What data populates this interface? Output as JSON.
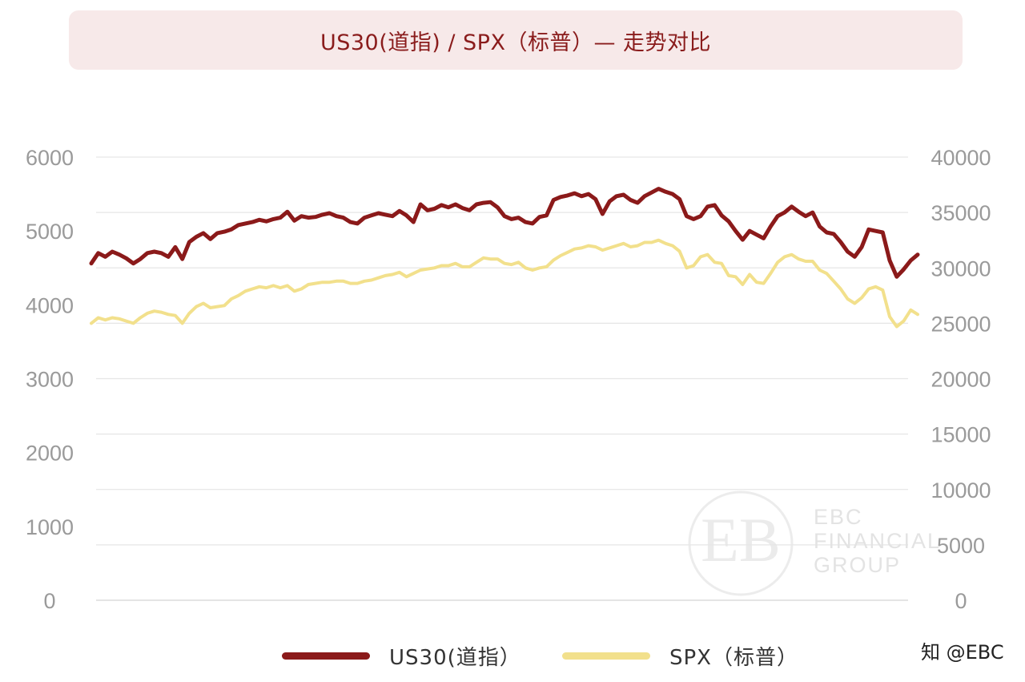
{
  "title": "US30(道指) / SPX（标普）— 走势对比",
  "watermark": "知 @EBC",
  "logo": {
    "line1": "EBC",
    "line2": "FINANCIAL",
    "line3": "GROUP"
  },
  "colors": {
    "us30": "#8b1a1a",
    "spx": "#f2e08c",
    "grid": "#e6e6e6",
    "tick": "#9a9a9a",
    "banner": "#f7e9e9"
  },
  "chart_data": {
    "type": "line",
    "grid": true,
    "legend_position": "bottom",
    "y_left": {
      "ticks": [
        "0",
        "1000",
        "2000",
        "3000",
        "4000",
        "5000",
        "6000"
      ],
      "range": [
        0,
        6000
      ]
    },
    "y_right": {
      "ticks": [
        "0",
        "5000",
        "10000",
        "15000",
        "20000",
        "25000",
        "30000",
        "35000",
        "40000"
      ],
      "range": [
        0,
        40000
      ]
    },
    "series": [
      {
        "name": "US30(道指）",
        "axis": "left",
        "color": "#8b1a1a",
        "values": [
          4560,
          4700,
          4650,
          4720,
          4680,
          4630,
          4560,
          4620,
          4700,
          4720,
          4700,
          4650,
          4780,
          4620,
          4850,
          4920,
          4970,
          4890,
          4970,
          4990,
          5020,
          5080,
          5100,
          5120,
          5150,
          5130,
          5160,
          5180,
          5260,
          5140,
          5200,
          5180,
          5190,
          5220,
          5240,
          5200,
          5180,
          5120,
          5100,
          5180,
          5210,
          5240,
          5220,
          5200,
          5270,
          5210,
          5120,
          5360,
          5280,
          5300,
          5350,
          5320,
          5360,
          5310,
          5280,
          5360,
          5380,
          5390,
          5320,
          5200,
          5160,
          5180,
          5120,
          5100,
          5190,
          5210,
          5420,
          5460,
          5480,
          5510,
          5470,
          5500,
          5430,
          5230,
          5400,
          5470,
          5490,
          5420,
          5380,
          5470,
          5520,
          5570,
          5530,
          5500,
          5430,
          5200,
          5160,
          5200,
          5330,
          5350,
          5210,
          5130,
          5000,
          4880,
          5000,
          4950,
          4900,
          5060,
          5200,
          5250,
          5330,
          5260,
          5200,
          5250,
          5060,
          4980,
          4960,
          4850,
          4720,
          4650,
          4780,
          5020,
          5000,
          4980,
          4600,
          4380,
          4480,
          4600,
          4680
        ]
      },
      {
        "name": "SPX（标普）",
        "axis": "right",
        "color": "#f2e08c",
        "values": [
          25000,
          25500,
          25300,
          25500,
          25400,
          25200,
          25000,
          25500,
          25900,
          26100,
          26000,
          25800,
          25700,
          25000,
          25900,
          26500,
          26800,
          26400,
          26500,
          26600,
          27200,
          27500,
          27900,
          28100,
          28300,
          28200,
          28400,
          28200,
          28400,
          27900,
          28100,
          28500,
          28600,
          28700,
          28700,
          28800,
          28800,
          28600,
          28600,
          28800,
          28900,
          29100,
          29300,
          29400,
          29600,
          29200,
          29500,
          29800,
          29900,
          30000,
          30200,
          30200,
          30400,
          30100,
          30100,
          30500,
          30900,
          30800,
          30800,
          30400,
          30300,
          30500,
          30000,
          29800,
          30000,
          30100,
          30700,
          31100,
          31400,
          31700,
          31800,
          32000,
          31900,
          31600,
          31800,
          32000,
          32200,
          31900,
          32000,
          32300,
          32300,
          32500,
          32200,
          32000,
          31500,
          30000,
          30200,
          31000,
          31200,
          30500,
          30400,
          29300,
          29200,
          28500,
          29400,
          28700,
          28600,
          29500,
          30500,
          31000,
          31200,
          30800,
          30600,
          30600,
          29800,
          29500,
          28800,
          28100,
          27200,
          26800,
          27300,
          28100,
          28300,
          28000,
          25600,
          24700,
          25200,
          26200,
          25800
        ]
      }
    ]
  }
}
